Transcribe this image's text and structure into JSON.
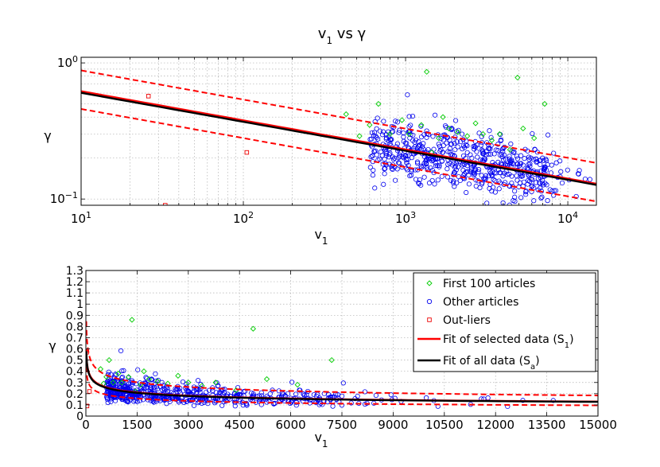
{
  "chart_data": [
    {
      "id": "top",
      "type": "scatter",
      "title": "v",
      "title_sub": "1",
      "title_tail": " vs γ",
      "xlabel": "v",
      "xlabel_sub": "1",
      "ylabel": "γ",
      "xscale": "log",
      "yscale": "log",
      "xlim": [
        10,
        15000
      ],
      "ylim": [
        0.09,
        1.1
      ],
      "grid": true,
      "x_ticks": [
        {
          "value": 10,
          "base": "10",
          "exp": "1"
        },
        {
          "value": 100,
          "base": "10",
          "exp": "2"
        },
        {
          "value": 1000,
          "base": "10",
          "exp": "3"
        },
        {
          "value": 10000,
          "base": "10",
          "exp": "4"
        }
      ],
      "y_ticks": [
        {
          "value": 0.1,
          "base": "10",
          "exp": "−1"
        },
        {
          "value": 1,
          "base": "10",
          "exp": "0"
        }
      ],
      "colors": {
        "first": "#00cc00",
        "other": "#0000ee",
        "outlier": "#ee0000",
        "fit_sel": "#ff0000",
        "fit_all": "#000000"
      },
      "outliers": [
        [
          26,
          0.57
        ],
        [
          33,
          0.09
        ],
        [
          105,
          0.22
        ]
      ],
      "first": [
        [
          430,
          0.42
        ],
        [
          520,
          0.29
        ],
        [
          600,
          0.35
        ],
        [
          680,
          0.5
        ],
        [
          800,
          0.3
        ],
        [
          950,
          0.38
        ],
        [
          1050,
          0.3
        ],
        [
          1250,
          0.35
        ],
        [
          1350,
          0.86
        ],
        [
          1450,
          0.22
        ],
        [
          1600,
          0.28
        ],
        [
          1700,
          0.4
        ],
        [
          1850,
          0.33
        ],
        [
          2100,
          0.31
        ],
        [
          2400,
          0.29
        ],
        [
          2700,
          0.36
        ],
        [
          3000,
          0.3
        ],
        [
          3400,
          0.27
        ],
        [
          3800,
          0.3
        ],
        [
          4400,
          0.23
        ],
        [
          4900,
          0.78
        ],
        [
          5300,
          0.33
        ],
        [
          6200,
          0.28
        ],
        [
          7200,
          0.5
        ]
      ],
      "fits": {
        "selected": {
          "a": 1.015,
          "b": -0.214
        },
        "all": {
          "a": 0.985,
          "b": -0.213
        },
        "band_upper_factor": 1.42,
        "band_lower_factor": 0.74
      }
    },
    {
      "id": "bottom",
      "type": "scatter",
      "xlabel": "v",
      "xlabel_sub": "1",
      "ylabel": "γ",
      "xscale": "linear",
      "yscale": "linear",
      "xlim": [
        0,
        15000
      ],
      "ylim": [
        0,
        1.3
      ],
      "grid": true,
      "x_ticks": [
        "0",
        "1500",
        "3000",
        "4500",
        "6000",
        "7500",
        "9000",
        "10500",
        "12000",
        "13500",
        "15000"
      ],
      "y_ticks": [
        "0",
        "0.1",
        "0.2",
        "0.3",
        "0.4",
        "0.5",
        "0.6",
        "0.7",
        "0.8",
        "0.9",
        "1",
        "1.1",
        "1.2",
        "1.3"
      ],
      "legend_position": "top-right",
      "legend": [
        {
          "key": "first",
          "label": "First 100 articles"
        },
        {
          "key": "other",
          "label": "Other articles"
        },
        {
          "key": "outlier",
          "label": "Out-liers"
        },
        {
          "key": "fit_sel",
          "label": "Fit of selected data (S",
          "sub": "1",
          "tail": ")"
        },
        {
          "key": "fit_all",
          "label": "Fit of all data (S",
          "sub": "a",
          "tail": ")"
        }
      ]
    }
  ]
}
